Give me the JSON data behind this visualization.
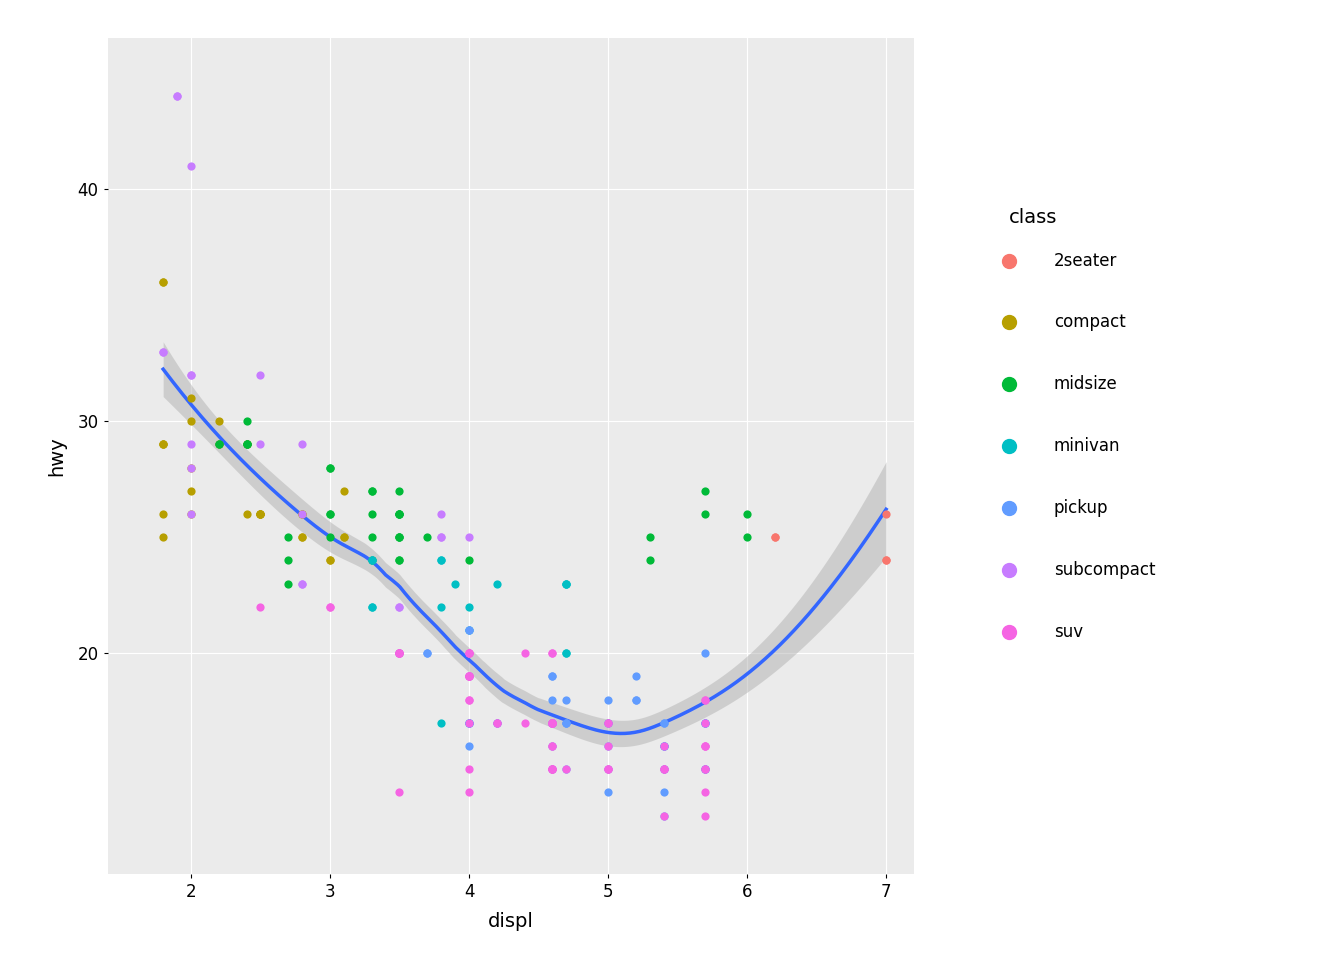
{
  "title": "",
  "xlabel": "displ",
  "ylabel": "hwy",
  "legend_title": "class",
  "bg_color": "#EBEBEB",
  "grid_color": "#FFFFFF",
  "smooth_color": "#3366FF",
  "ci_color": "#AAAAAA",
  "point_size": 35,
  "classes": [
    "2seater",
    "compact",
    "midsize",
    "minivan",
    "pickup",
    "subcompact",
    "suv"
  ],
  "class_colors": {
    "2seater": "#F8766D",
    "compact": "#B79F00",
    "midsize": "#00BA38",
    "minivan": "#00BFC4",
    "pickup": "#619CFF",
    "subcompact": "#C77CFF",
    "suv": "#F564E3"
  },
  "xlim": [
    1.4,
    7.2
  ],
  "ylim": [
    10.5,
    46.5
  ],
  "xticks": [
    2,
    3,
    4,
    5,
    6,
    7
  ],
  "yticks": [
    20,
    30,
    40
  ],
  "data": [
    {
      "displ": 1.8,
      "hwy": 29,
      "class": "compact"
    },
    {
      "displ": 1.8,
      "hwy": 29,
      "class": "compact"
    },
    {
      "displ": 2.0,
      "hwy": 31,
      "class": "compact"
    },
    {
      "displ": 2.0,
      "hwy": 30,
      "class": "compact"
    },
    {
      "displ": 2.8,
      "hwy": 26,
      "class": "compact"
    },
    {
      "displ": 2.8,
      "hwy": 26,
      "class": "compact"
    },
    {
      "displ": 3.1,
      "hwy": 27,
      "class": "compact"
    },
    {
      "displ": 1.8,
      "hwy": 26,
      "class": "compact"
    },
    {
      "displ": 1.8,
      "hwy": 25,
      "class": "compact"
    },
    {
      "displ": 2.0,
      "hwy": 28,
      "class": "compact"
    },
    {
      "displ": 2.0,
      "hwy": 27,
      "class": "compact"
    },
    {
      "displ": 2.8,
      "hwy": 25,
      "class": "compact"
    },
    {
      "displ": 2.8,
      "hwy": 25,
      "class": "compact"
    },
    {
      "displ": 3.1,
      "hwy": 25,
      "class": "compact"
    },
    {
      "displ": 3.1,
      "hwy": 25,
      "class": "compact"
    },
    {
      "displ": 2.2,
      "hwy": 30,
      "class": "compact"
    },
    {
      "displ": 2.2,
      "hwy": 29,
      "class": "compact"
    },
    {
      "displ": 2.4,
      "hwy": 29,
      "class": "compact"
    },
    {
      "displ": 2.4,
      "hwy": 29,
      "class": "compact"
    },
    {
      "displ": 3.0,
      "hwy": 24,
      "class": "compact"
    },
    {
      "displ": 3.0,
      "hwy": 24,
      "class": "compact"
    },
    {
      "displ": 3.3,
      "hwy": 24,
      "class": "compact"
    },
    {
      "displ": 1.8,
      "hwy": 36,
      "class": "compact"
    },
    {
      "displ": 1.8,
      "hwy": 36,
      "class": "compact"
    },
    {
      "displ": 1.8,
      "hwy": 29,
      "class": "compact"
    },
    {
      "displ": 2.0,
      "hwy": 26,
      "class": "compact"
    },
    {
      "displ": 2.4,
      "hwy": 26,
      "class": "compact"
    },
    {
      "displ": 2.5,
      "hwy": 26,
      "class": "compact"
    },
    {
      "displ": 2.5,
      "hwy": 26,
      "class": "compact"
    },
    {
      "displ": 2.5,
      "hwy": 26,
      "class": "compact"
    },
    {
      "displ": 2.5,
      "hwy": 26,
      "class": "compact"
    },
    {
      "displ": 2.5,
      "hwy": 26,
      "class": "compact"
    },
    {
      "displ": 1.9,
      "hwy": 44,
      "class": "subcompact"
    },
    {
      "displ": 1.9,
      "hwy": 44,
      "class": "subcompact"
    },
    {
      "displ": 2.0,
      "hwy": 41,
      "class": "subcompact"
    },
    {
      "displ": 2.0,
      "hwy": 29,
      "class": "subcompact"
    },
    {
      "displ": 2.0,
      "hwy": 26,
      "class": "subcompact"
    },
    {
      "displ": 2.0,
      "hwy": 28,
      "class": "subcompact"
    },
    {
      "displ": 2.8,
      "hwy": 29,
      "class": "subcompact"
    },
    {
      "displ": 2.8,
      "hwy": 26,
      "class": "subcompact"
    },
    {
      "displ": 3.8,
      "hwy": 26,
      "class": "subcompact"
    },
    {
      "displ": 3.8,
      "hwy": 25,
      "class": "subcompact"
    },
    {
      "displ": 3.8,
      "hwy": 25,
      "class": "subcompact"
    },
    {
      "displ": 4.0,
      "hwy": 25,
      "class": "subcompact"
    },
    {
      "displ": 1.8,
      "hwy": 33,
      "class": "subcompact"
    },
    {
      "displ": 1.8,
      "hwy": 33,
      "class": "subcompact"
    },
    {
      "displ": 2.0,
      "hwy": 32,
      "class": "subcompact"
    },
    {
      "displ": 2.0,
      "hwy": 32,
      "class": "subcompact"
    },
    {
      "displ": 2.5,
      "hwy": 29,
      "class": "subcompact"
    },
    {
      "displ": 2.5,
      "hwy": 32,
      "class": "subcompact"
    },
    {
      "displ": 2.8,
      "hwy": 23,
      "class": "subcompact"
    },
    {
      "displ": 2.8,
      "hwy": 23,
      "class": "subcompact"
    },
    {
      "displ": 3.5,
      "hwy": 22,
      "class": "subcompact"
    },
    {
      "displ": 3.5,
      "hwy": 22,
      "class": "subcompact"
    },
    {
      "displ": 2.2,
      "hwy": 29,
      "class": "midsize"
    },
    {
      "displ": 2.2,
      "hwy": 29,
      "class": "midsize"
    },
    {
      "displ": 2.4,
      "hwy": 29,
      "class": "midsize"
    },
    {
      "displ": 2.4,
      "hwy": 29,
      "class": "midsize"
    },
    {
      "displ": 3.0,
      "hwy": 28,
      "class": "midsize"
    },
    {
      "displ": 3.0,
      "hwy": 28,
      "class": "midsize"
    },
    {
      "displ": 3.5,
      "hwy": 27,
      "class": "midsize"
    },
    {
      "displ": 3.0,
      "hwy": 25,
      "class": "midsize"
    },
    {
      "displ": 3.3,
      "hwy": 25,
      "class": "midsize"
    },
    {
      "displ": 3.3,
      "hwy": 26,
      "class": "midsize"
    },
    {
      "displ": 3.3,
      "hwy": 27,
      "class": "midsize"
    },
    {
      "displ": 3.3,
      "hwy": 27,
      "class": "midsize"
    },
    {
      "displ": 2.4,
      "hwy": 30,
      "class": "midsize"
    },
    {
      "displ": 2.4,
      "hwy": 29,
      "class": "midsize"
    },
    {
      "displ": 3.0,
      "hwy": 26,
      "class": "midsize"
    },
    {
      "displ": 3.5,
      "hwy": 26,
      "class": "midsize"
    },
    {
      "displ": 3.5,
      "hwy": 26,
      "class": "midsize"
    },
    {
      "displ": 3.5,
      "hwy": 25,
      "class": "midsize"
    },
    {
      "displ": 3.5,
      "hwy": 26,
      "class": "midsize"
    },
    {
      "displ": 3.5,
      "hwy": 24,
      "class": "midsize"
    },
    {
      "displ": 3.5,
      "hwy": 25,
      "class": "midsize"
    },
    {
      "displ": 3.5,
      "hwy": 24,
      "class": "midsize"
    },
    {
      "displ": 3.5,
      "hwy": 25,
      "class": "midsize"
    },
    {
      "displ": 3.5,
      "hwy": 26,
      "class": "midsize"
    },
    {
      "displ": 2.7,
      "hwy": 23,
      "class": "midsize"
    },
    {
      "displ": 2.7,
      "hwy": 24,
      "class": "midsize"
    },
    {
      "displ": 2.7,
      "hwy": 25,
      "class": "midsize"
    },
    {
      "displ": 3.0,
      "hwy": 26,
      "class": "midsize"
    },
    {
      "displ": 3.7,
      "hwy": 25,
      "class": "midsize"
    },
    {
      "displ": 4.0,
      "hwy": 24,
      "class": "midsize"
    },
    {
      "displ": 5.3,
      "hwy": 25,
      "class": "midsize"
    },
    {
      "displ": 5.3,
      "hwy": 24,
      "class": "midsize"
    },
    {
      "displ": 5.7,
      "hwy": 27,
      "class": "midsize"
    },
    {
      "displ": 6.0,
      "hwy": 25,
      "class": "midsize"
    },
    {
      "displ": 5.7,
      "hwy": 26,
      "class": "midsize"
    },
    {
      "displ": 6.0,
      "hwy": 26,
      "class": "midsize"
    },
    {
      "displ": 3.3,
      "hwy": 24,
      "class": "minivan"
    },
    {
      "displ": 3.3,
      "hwy": 24,
      "class": "minivan"
    },
    {
      "displ": 3.3,
      "hwy": 24,
      "class": "minivan"
    },
    {
      "displ": 3.3,
      "hwy": 22,
      "class": "minivan"
    },
    {
      "displ": 3.3,
      "hwy": 22,
      "class": "minivan"
    },
    {
      "displ": 3.8,
      "hwy": 24,
      "class": "minivan"
    },
    {
      "displ": 3.8,
      "hwy": 24,
      "class": "minivan"
    },
    {
      "displ": 3.8,
      "hwy": 17,
      "class": "minivan"
    },
    {
      "displ": 4.0,
      "hwy": 22,
      "class": "minivan"
    },
    {
      "displ": 4.0,
      "hwy": 21,
      "class": "minivan"
    },
    {
      "displ": 4.7,
      "hwy": 23,
      "class": "minivan"
    },
    {
      "displ": 4.7,
      "hwy": 23,
      "class": "minivan"
    },
    {
      "displ": 4.7,
      "hwy": 20,
      "class": "minivan"
    },
    {
      "displ": 4.7,
      "hwy": 20,
      "class": "minivan"
    },
    {
      "displ": 3.9,
      "hwy": 23,
      "class": "minivan"
    },
    {
      "displ": 4.7,
      "hwy": 23,
      "class": "minivan"
    },
    {
      "displ": 3.8,
      "hwy": 22,
      "class": "minivan"
    },
    {
      "displ": 3.5,
      "hwy": 20,
      "class": "minivan"
    },
    {
      "displ": 4.2,
      "hwy": 23,
      "class": "minivan"
    },
    {
      "displ": 5.7,
      "hwy": 15,
      "class": "pickup"
    },
    {
      "displ": 5.7,
      "hwy": 15,
      "class": "pickup"
    },
    {
      "displ": 5.7,
      "hwy": 17,
      "class": "pickup"
    },
    {
      "displ": 4.7,
      "hwy": 17,
      "class": "pickup"
    },
    {
      "displ": 4.7,
      "hwy": 15,
      "class": "pickup"
    },
    {
      "displ": 5.7,
      "hwy": 15,
      "class": "pickup"
    },
    {
      "displ": 3.7,
      "hwy": 20,
      "class": "pickup"
    },
    {
      "displ": 3.7,
      "hwy": 20,
      "class": "pickup"
    },
    {
      "displ": 4.0,
      "hwy": 17,
      "class": "pickup"
    },
    {
      "displ": 4.0,
      "hwy": 17,
      "class": "pickup"
    },
    {
      "displ": 4.0,
      "hwy": 17,
      "class": "pickup"
    },
    {
      "displ": 4.7,
      "hwy": 17,
      "class": "pickup"
    },
    {
      "displ": 4.7,
      "hwy": 17,
      "class": "pickup"
    },
    {
      "displ": 4.7,
      "hwy": 18,
      "class": "pickup"
    },
    {
      "displ": 5.7,
      "hwy": 17,
      "class": "pickup"
    },
    {
      "displ": 5.7,
      "hwy": 17,
      "class": "pickup"
    },
    {
      "displ": 5.7,
      "hwy": 20,
      "class": "pickup"
    },
    {
      "displ": 5.2,
      "hwy": 18,
      "class": "pickup"
    },
    {
      "displ": 5.2,
      "hwy": 18,
      "class": "pickup"
    },
    {
      "displ": 5.2,
      "hwy": 19,
      "class": "pickup"
    },
    {
      "displ": 4.6,
      "hwy": 17,
      "class": "pickup"
    },
    {
      "displ": 4.6,
      "hwy": 19,
      "class": "pickup"
    },
    {
      "displ": 4.6,
      "hwy": 19,
      "class": "pickup"
    },
    {
      "displ": 4.6,
      "hwy": 17,
      "class": "pickup"
    },
    {
      "displ": 5.4,
      "hwy": 14,
      "class": "pickup"
    },
    {
      "displ": 5.4,
      "hwy": 15,
      "class": "pickup"
    },
    {
      "displ": 5.4,
      "hwy": 17,
      "class": "pickup"
    },
    {
      "displ": 4.0,
      "hwy": 21,
      "class": "pickup"
    },
    {
      "displ": 4.0,
      "hwy": 21,
      "class": "pickup"
    },
    {
      "displ": 4.0,
      "hwy": 19,
      "class": "pickup"
    },
    {
      "displ": 4.6,
      "hwy": 18,
      "class": "pickup"
    },
    {
      "displ": 5.0,
      "hwy": 18,
      "class": "pickup"
    },
    {
      "displ": 5.0,
      "hwy": 16,
      "class": "pickup"
    },
    {
      "displ": 5.0,
      "hwy": 14,
      "class": "pickup"
    },
    {
      "displ": 5.4,
      "hwy": 13,
      "class": "pickup"
    },
    {
      "displ": 5.0,
      "hwy": 17,
      "class": "pickup"
    },
    {
      "displ": 5.0,
      "hwy": 15,
      "class": "pickup"
    },
    {
      "displ": 5.0,
      "hwy": 17,
      "class": "pickup"
    },
    {
      "displ": 4.6,
      "hwy": 17,
      "class": "pickup"
    },
    {
      "displ": 5.4,
      "hwy": 16,
      "class": "pickup"
    },
    {
      "displ": 5.4,
      "hwy": 16,
      "class": "pickup"
    },
    {
      "displ": 4.0,
      "hwy": 17,
      "class": "pickup"
    },
    {
      "displ": 4.0,
      "hwy": 16,
      "class": "pickup"
    },
    {
      "displ": 4.2,
      "hwy": 17,
      "class": "pickup"
    },
    {
      "displ": 4.2,
      "hwy": 17,
      "class": "pickup"
    },
    {
      "displ": 4.6,
      "hwy": 16,
      "class": "pickup"
    },
    {
      "displ": 4.6,
      "hwy": 17,
      "class": "pickup"
    },
    {
      "displ": 4.6,
      "hwy": 15,
      "class": "pickup"
    },
    {
      "displ": 5.4,
      "hwy": 15,
      "class": "pickup"
    },
    {
      "displ": 5.4,
      "hwy": 17,
      "class": "pickup"
    },
    {
      "displ": 5.4,
      "hwy": 16,
      "class": "pickup"
    },
    {
      "displ": 2.5,
      "hwy": 22,
      "class": "suv"
    },
    {
      "displ": 4.0,
      "hwy": 19,
      "class": "suv"
    },
    {
      "displ": 4.0,
      "hwy": 20,
      "class": "suv"
    },
    {
      "displ": 4.6,
      "hwy": 17,
      "class": "suv"
    },
    {
      "displ": 5.4,
      "hwy": 15,
      "class": "suv"
    },
    {
      "displ": 5.4,
      "hwy": 15,
      "class": "suv"
    },
    {
      "displ": 3.0,
      "hwy": 22,
      "class": "suv"
    },
    {
      "displ": 3.0,
      "hwy": 22,
      "class": "suv"
    },
    {
      "displ": 3.5,
      "hwy": 20,
      "class": "suv"
    },
    {
      "displ": 3.5,
      "hwy": 20,
      "class": "suv"
    },
    {
      "displ": 4.2,
      "hwy": 17,
      "class": "suv"
    },
    {
      "displ": 4.2,
      "hwy": 17,
      "class": "suv"
    },
    {
      "displ": 4.6,
      "hwy": 17,
      "class": "suv"
    },
    {
      "displ": 4.6,
      "hwy": 17,
      "class": "suv"
    },
    {
      "displ": 4.6,
      "hwy": 20,
      "class": "suv"
    },
    {
      "displ": 5.7,
      "hwy": 18,
      "class": "suv"
    },
    {
      "displ": 5.7,
      "hwy": 17,
      "class": "suv"
    },
    {
      "displ": 5.7,
      "hwy": 16,
      "class": "suv"
    },
    {
      "displ": 5.7,
      "hwy": 15,
      "class": "suv"
    },
    {
      "displ": 5.7,
      "hwy": 18,
      "class": "suv"
    },
    {
      "displ": 4.0,
      "hwy": 19,
      "class": "suv"
    },
    {
      "displ": 4.0,
      "hwy": 18,
      "class": "suv"
    },
    {
      "displ": 4.0,
      "hwy": 19,
      "class": "suv"
    },
    {
      "displ": 4.0,
      "hwy": 17,
      "class": "suv"
    },
    {
      "displ": 4.6,
      "hwy": 15,
      "class": "suv"
    },
    {
      "displ": 5.0,
      "hwy": 15,
      "class": "suv"
    },
    {
      "displ": 5.0,
      "hwy": 17,
      "class": "suv"
    },
    {
      "displ": 5.0,
      "hwy": 17,
      "class": "suv"
    },
    {
      "displ": 5.0,
      "hwy": 15,
      "class": "suv"
    },
    {
      "displ": 5.0,
      "hwy": 16,
      "class": "suv"
    },
    {
      "displ": 5.0,
      "hwy": 15,
      "class": "suv"
    },
    {
      "displ": 3.5,
      "hwy": 20,
      "class": "suv"
    },
    {
      "displ": 3.5,
      "hwy": 20,
      "class": "suv"
    },
    {
      "displ": 3.5,
      "hwy": 20,
      "class": "suv"
    },
    {
      "displ": 3.5,
      "hwy": 20,
      "class": "suv"
    },
    {
      "displ": 3.5,
      "hwy": 14,
      "class": "suv"
    },
    {
      "displ": 4.0,
      "hwy": 15,
      "class": "suv"
    },
    {
      "displ": 4.0,
      "hwy": 20,
      "class": "suv"
    },
    {
      "displ": 4.0,
      "hwy": 14,
      "class": "suv"
    },
    {
      "displ": 4.0,
      "hwy": 19,
      "class": "suv"
    },
    {
      "displ": 4.0,
      "hwy": 20,
      "class": "suv"
    },
    {
      "displ": 4.4,
      "hwy": 17,
      "class": "suv"
    },
    {
      "displ": 4.4,
      "hwy": 20,
      "class": "suv"
    },
    {
      "displ": 4.6,
      "hwy": 17,
      "class": "suv"
    },
    {
      "displ": 4.6,
      "hwy": 17,
      "class": "suv"
    },
    {
      "displ": 4.6,
      "hwy": 20,
      "class": "suv"
    },
    {
      "displ": 4.6,
      "hwy": 16,
      "class": "suv"
    },
    {
      "displ": 4.6,
      "hwy": 17,
      "class": "suv"
    },
    {
      "displ": 4.6,
      "hwy": 17,
      "class": "suv"
    },
    {
      "displ": 5.4,
      "hwy": 13,
      "class": "suv"
    },
    {
      "displ": 5.4,
      "hwy": 15,
      "class": "suv"
    },
    {
      "displ": 5.4,
      "hwy": 16,
      "class": "suv"
    },
    {
      "displ": 4.0,
      "hwy": 20,
      "class": "suv"
    },
    {
      "displ": 4.0,
      "hwy": 19,
      "class": "suv"
    },
    {
      "displ": 4.0,
      "hwy": 19,
      "class": "suv"
    },
    {
      "displ": 4.0,
      "hwy": 18,
      "class": "suv"
    },
    {
      "displ": 4.6,
      "hwy": 15,
      "class": "suv"
    },
    {
      "displ": 4.6,
      "hwy": 16,
      "class": "suv"
    },
    {
      "displ": 4.6,
      "hwy": 15,
      "class": "suv"
    },
    {
      "displ": 4.6,
      "hwy": 15,
      "class": "suv"
    },
    {
      "displ": 4.6,
      "hwy": 15,
      "class": "suv"
    },
    {
      "displ": 4.7,
      "hwy": 15,
      "class": "suv"
    },
    {
      "displ": 5.7,
      "hwy": 14,
      "class": "suv"
    },
    {
      "displ": 5.7,
      "hwy": 15,
      "class": "suv"
    },
    {
      "displ": 5.7,
      "hwy": 16,
      "class": "suv"
    },
    {
      "displ": 5.7,
      "hwy": 16,
      "class": "suv"
    },
    {
      "displ": 5.7,
      "hwy": 13,
      "class": "suv"
    },
    {
      "displ": 7.0,
      "hwy": 24,
      "class": "2seater"
    },
    {
      "displ": 7.0,
      "hwy": 24,
      "class": "2seater"
    },
    {
      "displ": 7.0,
      "hwy": 26,
      "class": "2seater"
    },
    {
      "displ": 6.2,
      "hwy": 25,
      "class": "2seater"
    },
    {
      "displ": 6.2,
      "hwy": 25,
      "class": "2seater"
    }
  ]
}
